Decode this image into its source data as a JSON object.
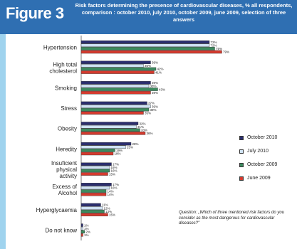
{
  "figure_label": "Figure 3",
  "title": "Risk factors determining the presence of cardiovascular diseases, % all respondents, comparison : october  2010, july 2010, october 2009, june 2009, selection of three answers",
  "note": "Question: „Which of three mentioned risk factors do you consider as the most dangerous for cardiovascular diseases?\"",
  "colors": {
    "header": "#2f6fb2",
    "stripe": "#9fd3ee"
  },
  "chart_data": {
    "type": "bar",
    "orientation": "horizontal",
    "categories": [
      "Hypertension",
      "High total cholesterol",
      "Smoking",
      "Stress",
      "Obesity",
      "Heredity",
      "Insuficient physical activity",
      "Excess of Alcohol",
      "Hyperglycaemia",
      "Do not know"
    ],
    "series": [
      {
        "name": "October  2010",
        "color": "#2b2e6e",
        "values": [
          72,
          39,
          39,
          37,
          32,
          28,
          17,
          17,
          11,
          1
        ]
      },
      {
        "name": "July 2010",
        "color": "#cfe2f3",
        "values": [
          72,
          35,
          38,
          39,
          31,
          25,
          16,
          16,
          12,
          1
        ]
      },
      {
        "name": "October  2009",
        "color": "#3c8a5e",
        "values": [
          75,
          42,
          43,
          38,
          33,
          19,
          16,
          14,
          13,
          2
        ]
      },
      {
        "name": "June 2009",
        "color": "#d43a2e",
        "values": [
          79,
          41,
          39,
          35,
          36,
          18,
          15,
          14,
          15,
          1
        ]
      }
    ],
    "xlim": [
      0,
      80
    ],
    "legend": "right"
  }
}
